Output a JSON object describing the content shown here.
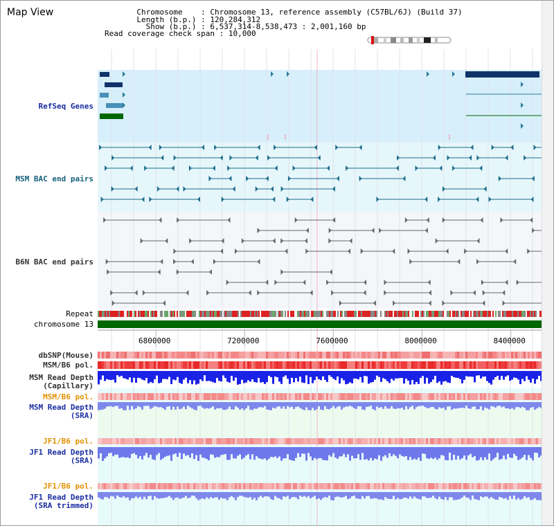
{
  "title": "Map View",
  "info": {
    "chromosome_key": "Chromosome",
    "chromosome_val": "Chromosome 13, reference assembly (C57BL/6J) (Build 37)",
    "length_key": "Length (b.p.)",
    "length_val": "120,284,312",
    "show_key": "Show (b.p.)",
    "show_val": "6,537,314-8,538,473 : 2,001,160 bp",
    "span_key": "Read coverage check span",
    "span_val": "10,000"
  },
  "labels": {
    "refseq": "RefSeq Genes",
    "msm_bac": "MSM BAC end pairs",
    "b6n_bac": "B6N BAC end pairs",
    "repeat": "Repeat",
    "chromosome": "chromosome 13",
    "dbsnp": "dbSNP(Mouse)",
    "msm_pol": "MSM/B6 pol.",
    "msm_depth_cap_1": "MSM Read Depth",
    "msm_depth_cap_2": "(Capillary)",
    "msm_pol_2": "MSM/B6 pol.",
    "msm_depth_sra_1": "MSM Read Depth",
    "msm_depth_sra_2": "(SRA)",
    "jf1_pol": "JF1/B6 pol.",
    "jf1_depth_sra_1": "JF1 Read Depth",
    "jf1_depth_sra_2": "(SRA)",
    "jf1_pol_2": "JF1/B6 pol.",
    "jf1_depth_trim_1": "JF1 Read Depth",
    "jf1_depth_trim_2": "(SRA trimmed)"
  },
  "axis": {
    "start": 6537314,
    "end": 8538473,
    "ticks": [
      "6800000",
      "7200000",
      "7600000",
      "8000000",
      "8400000"
    ],
    "tick_values": [
      6800000,
      7200000,
      7600000,
      8000000,
      8400000
    ]
  },
  "colors": {
    "refseq_bg": "#d7effa",
    "msm_bg": "#e6f7fb",
    "lower_bg": "#e8fbfb",
    "navy": "#10336a",
    "teal": "#16607c",
    "green": "#006600",
    "repeat_red": "#dd2222"
  }
}
